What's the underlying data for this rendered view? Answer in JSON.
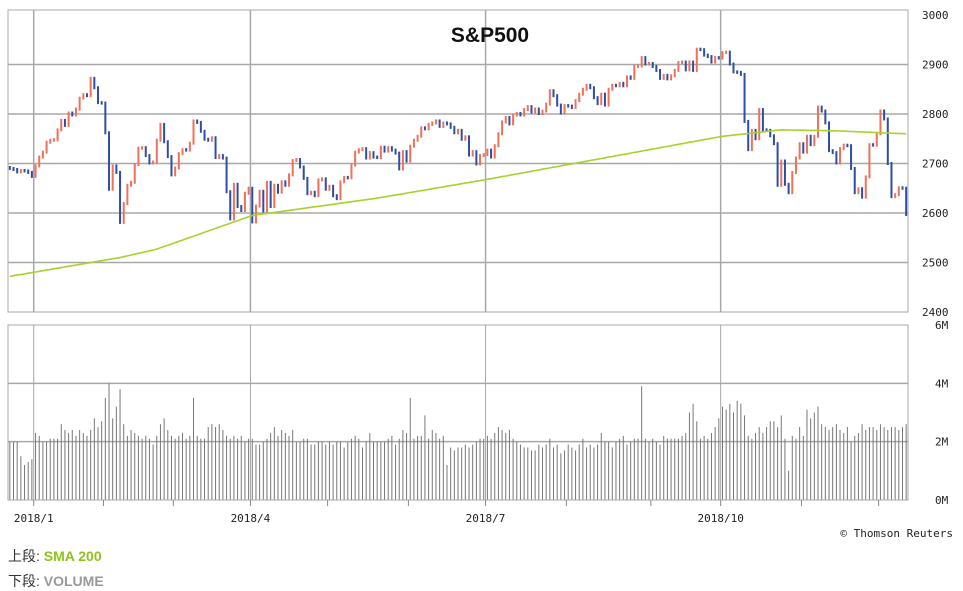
{
  "chart_data": [
    {
      "type": "bar",
      "subtype": "high-low price bars",
      "title": "S&P500",
      "y_ticks": [
        "3000",
        "2900",
        "2800",
        "2700",
        "2600",
        "2500",
        "2400"
      ],
      "ylim": [
        2400,
        3000
      ],
      "x_tick_labels": [
        "2018/1",
        "2018/4",
        "2018/7",
        "2018/10"
      ],
      "x_tick_label_bar_index": [
        7,
        66,
        130,
        194
      ],
      "month_start_bar_index": [
        7,
        26,
        45,
        66,
        87,
        109,
        130,
        152,
        175,
        194,
        216,
        237
      ],
      "colors": {
        "up": "#f0705a",
        "down": "#2e4ea6",
        "sma": "#a6d22a",
        "grid": "#a8a8a8"
      },
      "closes": [
        2690,
        2688,
        2683,
        2686,
        2685,
        2682,
        2674,
        2695,
        2713,
        2723,
        2743,
        2747,
        2748,
        2768,
        2787,
        2777,
        2802,
        2798,
        2810,
        2832,
        2839,
        2837,
        2872,
        2853,
        2823,
        2822,
        2762,
        2648,
        2695,
        2682,
        2581,
        2619,
        2656,
        2662,
        2698,
        2731,
        2732,
        2716,
        2701,
        2703,
        2747,
        2779,
        2744,
        2714,
        2677,
        2691,
        2720,
        2728,
        2727,
        2741,
        2786,
        2783,
        2765,
        2749,
        2747,
        2752,
        2712,
        2716,
        2711,
        2643,
        2588,
        2658,
        2613,
        2605,
        2640,
        2650,
        2582,
        2614,
        2644,
        2604,
        2662,
        2613,
        2656,
        2642,
        2663,
        2656,
        2677,
        2706,
        2708,
        2693,
        2670,
        2639,
        2642,
        2635,
        2667,
        2669,
        2648,
        2654,
        2635,
        2629,
        2663,
        2672,
        2671,
        2697,
        2723,
        2728,
        2730,
        2711,
        2722,
        2713,
        2712,
        2733,
        2725,
        2732,
        2727,
        2721,
        2689,
        2724,
        2705,
        2735,
        2747,
        2755,
        2772,
        2770,
        2779,
        2782,
        2786,
        2775,
        2782,
        2780,
        2773,
        2762,
        2767,
        2749,
        2754,
        2717,
        2724,
        2699,
        2716,
        2718,
        2727,
        2713,
        2736,
        2760,
        2784,
        2793,
        2780,
        2798,
        2801,
        2798,
        2809,
        2815,
        2804,
        2810,
        2801,
        2806,
        2820,
        2847,
        2837,
        2818,
        2802,
        2817,
        2816,
        2813,
        2827,
        2840,
        2850,
        2858,
        2853,
        2833,
        2821,
        2840,
        2818,
        2850,
        2858,
        2857,
        2862,
        2857,
        2875,
        2872,
        2896,
        2897,
        2914,
        2901,
        2902,
        2896,
        2888,
        2872,
        2878,
        2871,
        2877,
        2888,
        2904,
        2905,
        2889,
        2905,
        2888,
        2931,
        2930,
        2919,
        2916,
        2905,
        2914,
        2913,
        2924,
        2925,
        2901,
        2885,
        2884,
        2880,
        2785,
        2728,
        2767,
        2750,
        2809,
        2768,
        2767,
        2756,
        2740,
        2656,
        2705,
        2658,
        2641,
        2682,
        2711,
        2740,
        2723,
        2755,
        2738,
        2755,
        2814,
        2806,
        2782,
        2726,
        2722,
        2701,
        2730,
        2737,
        2736,
        2690,
        2641,
        2649,
        2632,
        2673,
        2738,
        2737,
        2760,
        2806,
        2790,
        2700,
        2633,
        2637,
        2651,
        2650,
        2597
      ],
      "sma200_anchors": [
        [
          0,
          2472
        ],
        [
          30,
          2510
        ],
        [
          40,
          2527
        ],
        [
          66,
          2595
        ],
        [
          100,
          2630
        ],
        [
          130,
          2668
        ],
        [
          194,
          2755
        ],
        [
          210,
          2768
        ],
        [
          225,
          2766
        ],
        [
          244,
          2760
        ]
      ]
    },
    {
      "type": "bar",
      "subtype": "volume",
      "y_ticks": [
        "6M",
        "4M",
        "2M",
        "0M"
      ],
      "ylim": [
        0,
        6
      ],
      "unit": "M",
      "values": [
        2.0,
        2.0,
        2.0,
        1.5,
        1.2,
        1.3,
        1.4,
        2.3,
        2.2,
        2.0,
        2.0,
        2.1,
        2.1,
        2.1,
        2.6,
        2.4,
        2.3,
        2.4,
        2.2,
        2.4,
        2.3,
        2.2,
        2.4,
        2.8,
        2.5,
        2.7,
        3.5,
        4.0,
        2.8,
        3.2,
        3.8,
        2.6,
        2.2,
        2.4,
        2.3,
        2.2,
        2.1,
        2.2,
        2.1,
        1.9,
        2.2,
        2.6,
        2.8,
        2.4,
        2.2,
        2.1,
        2.2,
        2.3,
        2.1,
        2.2,
        3.5,
        2.2,
        2.1,
        2.1,
        2.5,
        2.6,
        2.5,
        2.6,
        2.4,
        2.2,
        2.1,
        2.2,
        2.1,
        2.2,
        2.0,
        2.1,
        2.1,
        1.9,
        1.9,
        2.0,
        2.1,
        2.3,
        2.5,
        2.2,
        2.4,
        2.3,
        2.2,
        2.4,
        2.0,
        2.0,
        2.1,
        2.1,
        1.9,
        1.9,
        2.0,
        2.0,
        1.9,
        2.0,
        1.9,
        2.0,
        2.0,
        1.8,
        2.0,
        2.1,
        2.2,
        2.1,
        1.8,
        2.0,
        2.3,
        2.0,
        2.0,
        2.0,
        2.0,
        2.1,
        2.2,
        1.9,
        2.1,
        2.4,
        2.3,
        3.5,
        2.1,
        2.2,
        2.2,
        2.9,
        2.1,
        2.4,
        2.3,
        2.1,
        2.2,
        1.2,
        1.8,
        1.7,
        1.8,
        1.8,
        1.9,
        1.8,
        1.9,
        2.0,
        2.1,
        2.1,
        2.2,
        2.1,
        2.3,
        2.5,
        2.4,
        2.3,
        2.4,
        2.1,
        2.0,
        1.9,
        1.8,
        1.8,
        1.7,
        1.7,
        1.9,
        1.8,
        1.9,
        2.1,
        1.8,
        1.9,
        1.6,
        1.7,
        1.9,
        1.8,
        1.7,
        1.9,
        2.1,
        1.8,
        1.9,
        1.8,
        1.9,
        2.3,
        2.0,
        2.0,
        1.8,
        2.0,
        2.1,
        2.2,
        1.9,
        2.0,
        2.1,
        2.1,
        3.9,
        2.1,
        2.0,
        2.1,
        2.0,
        1.9,
        2.2,
        2.1,
        2.1,
        2.1,
        2.1,
        2.2,
        2.3,
        3.0,
        3.3,
        2.7,
        2.1,
        2.2,
        2.1,
        2.3,
        2.5,
        2.8,
        3.2,
        3.1,
        3.3,
        3.0,
        3.4,
        3.3,
        2.9,
        2.2,
        2.1,
        2.3,
        2.5,
        2.3,
        2.5,
        2.7,
        2.7,
        2.5,
        2.9,
        2.1,
        1.0,
        2.2,
        2.1,
        2.5,
        2.2,
        3.1,
        2.8,
        3.0,
        3.2,
        2.6,
        2.5,
        2.4,
        2.5,
        2.6,
        2.4,
        2.3,
        2.5,
        2.0,
        2.2,
        2.3,
        2.6,
        2.4,
        2.5,
        2.5,
        2.4,
        2.6,
        2.5,
        2.4,
        2.5,
        2.5,
        2.4,
        2.5,
        2.6
      ],
      "color": "#777777"
    }
  ],
  "copyright": "© Thomson Reuters",
  "legend": {
    "upper_label": "上段:",
    "upper_value": "SMA 200",
    "lower_label": "下段:",
    "lower_value": "VOLUME"
  }
}
